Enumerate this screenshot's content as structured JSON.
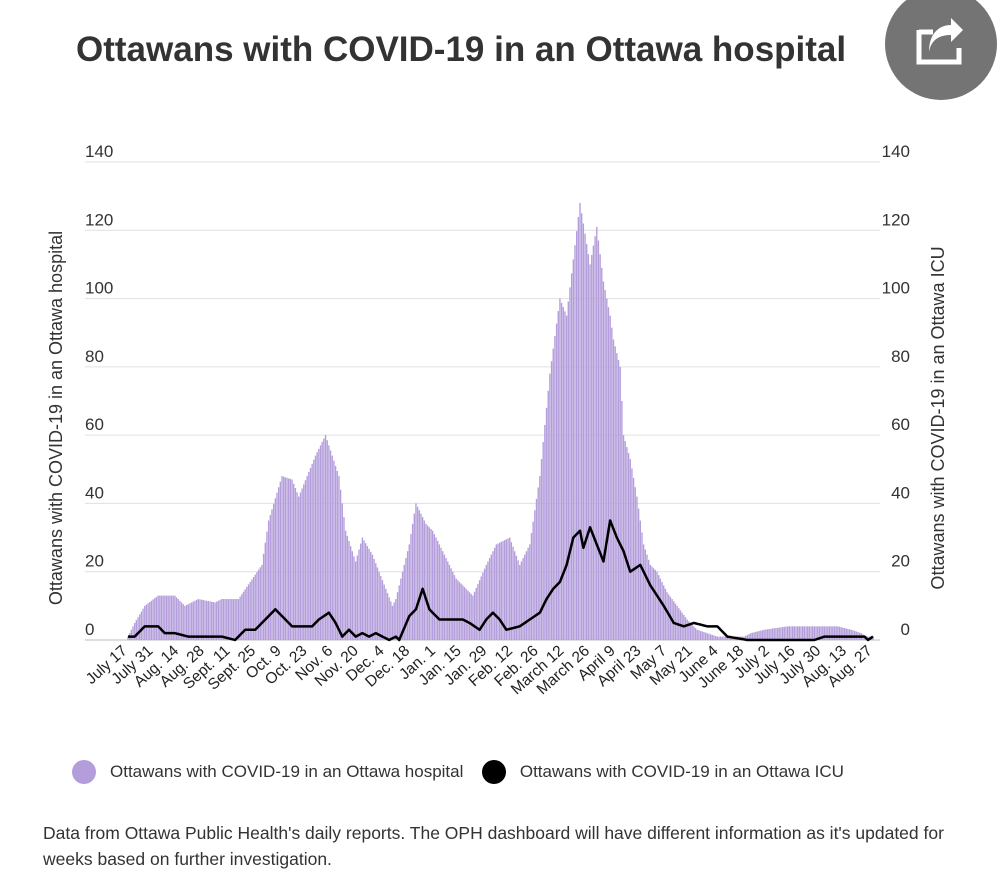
{
  "title": "Ottawans with COVID-19 in an Ottawa hospital",
  "share_icon": "share-icon",
  "footnote": "Data from Ottawa Public Health's daily reports. The OPH dashboard will have different information as it's updated for weeks based on further investigation.",
  "legend": [
    {
      "label": "Ottawans with COVID-19 in an Ottawa hospital",
      "color": "#b39ddb"
    },
    {
      "label": "Ottawans with COVID-19 in an Ottawa ICU",
      "color": "#000000"
    }
  ],
  "chart_data": {
    "type": "bar",
    "title": "Ottawans with COVID-19 in an Ottawa hospital",
    "ylabel_left": "Ottawans with COVID-19 in an Ottawa hospital",
    "ylabel_right": "Ottawans with COVID-19 in an Ottawa ICU",
    "ylim": [
      0,
      140
    ],
    "yticks": [
      0,
      20,
      40,
      60,
      80,
      100,
      120,
      140
    ],
    "grid": true,
    "legend_position": "bottom",
    "x_tick_labels": [
      "July 17",
      "July 31",
      "Aug. 14",
      "Aug. 28",
      "Sept. 11",
      "Sept. 25",
      "Oct. 9",
      "Oct. 23",
      "Nov. 6",
      "Nov. 20",
      "Dec. 4",
      "Dec. 18",
      "Jan. 1",
      "Jan. 15",
      "Jan. 29",
      "Feb. 12",
      "Feb. 26",
      "March 12",
      "March 26",
      "April 9",
      "April 23",
      "May 7",
      "May 21",
      "June 4",
      "June 18",
      "July 2",
      "July 16",
      "July 30",
      "Aug. 13",
      "Aug. 27"
    ],
    "series": [
      {
        "name": "Ottawans with COVID-19 in an Ottawa hospital",
        "type": "bar",
        "color": "#b39ddb",
        "anchor_days": [
          0,
          4,
          10,
          18,
          28,
          34,
          42,
          52,
          56,
          66,
          80,
          84,
          92,
          98,
          102,
          112,
          118,
          126,
          130,
          136,
          140,
          146,
          150,
          158,
          160,
          168,
          172,
          178,
          182,
          196,
          206,
          214,
          220,
          228,
          234,
          240,
          246,
          252,
          258,
          262,
          270,
          276,
          280,
          284,
          288,
          290,
          294,
          296,
          300,
          304,
          308,
          312,
          316,
          322,
          328,
          334,
          340,
          346,
          352,
          358,
          364,
          368,
          372,
          380,
          394,
          408,
          424,
          432,
          438,
          441,
          445
        ],
        "anchor_values": [
          1,
          5,
          10,
          13,
          13,
          10,
          12,
          11,
          12,
          12,
          22,
          35,
          48,
          47,
          42,
          54,
          60,
          48,
          32,
          23,
          30,
          25,
          20,
          10,
          12,
          28,
          40,
          34,
          32,
          18,
          13,
          22,
          28,
          30,
          22,
          28,
          48,
          78,
          100,
          95,
          128,
          110,
          121,
          105,
          95,
          88,
          80,
          60,
          53,
          42,
          28,
          22,
          20,
          14,
          10,
          6,
          3,
          2,
          1,
          1,
          1,
          1,
          2,
          3,
          4,
          4,
          4,
          3,
          2,
          1,
          1
        ]
      },
      {
        "name": "Ottawans with COVID-19 in an Ottawa ICU",
        "type": "line",
        "color": "#000000",
        "anchor_days": [
          0,
          4,
          10,
          18,
          22,
          28,
          36,
          50,
          56,
          64,
          70,
          76,
          82,
          88,
          94,
          98,
          102,
          110,
          114,
          120,
          124,
          128,
          132,
          136,
          140,
          144,
          148,
          152,
          156,
          160,
          162,
          168,
          172,
          176,
          180,
          186,
          200,
          204,
          210,
          214,
          218,
          222,
          226,
          234,
          240,
          246,
          250,
          254,
          258,
          262,
          266,
          270,
          272,
          276,
          280,
          284,
          288,
          292,
          296,
          300,
          306,
          312,
          316,
          320,
          326,
          332,
          338,
          346,
          352,
          358,
          370,
          380,
          392,
          400,
          410,
          416,
          426,
          436,
          440,
          442,
          445
        ],
        "anchor_values": [
          1,
          1,
          4,
          4,
          2,
          2,
          1,
          1,
          1,
          0,
          3,
          3,
          6,
          9,
          6,
          4,
          4,
          4,
          6,
          8,
          5,
          1,
          3,
          1,
          2,
          1,
          2,
          1,
          0,
          1,
          0,
          7,
          9,
          15,
          9,
          6,
          6,
          5,
          3,
          6,
          8,
          6,
          3,
          4,
          6,
          8,
          12,
          15,
          17,
          22,
          30,
          32,
          27,
          33,
          28,
          23,
          35,
          30,
          26,
          20,
          22,
          16,
          13,
          10,
          5,
          4,
          5,
          4,
          4,
          1,
          0,
          0,
          0,
          0,
          0,
          1,
          1,
          1,
          1,
          0,
          1
        ]
      }
    ]
  }
}
